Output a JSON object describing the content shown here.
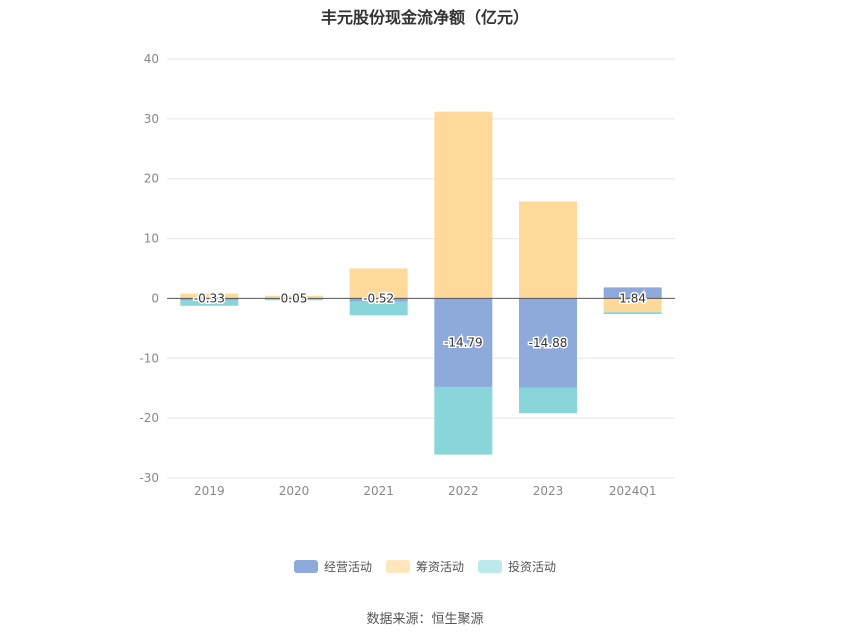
{
  "chart_data": {
    "type": "bar",
    "stacked": true,
    "title": "丰元股份现金流净额（亿元）",
    "categories": [
      "2019",
      "2020",
      "2021",
      "2022",
      "2023",
      "2024Q1"
    ],
    "series": [
      {
        "name": "经营活动",
        "color": "#8eaadb",
        "values": [
          -0.33,
          0.05,
          -0.52,
          -14.79,
          -14.88,
          1.84
        ],
        "labels": [
          "-0.33",
          "0.05",
          "-0.52",
          "-14.79",
          "-14.88",
          "1.84"
        ]
      },
      {
        "name": "筹资活动",
        "color": "#ffd99a",
        "values": [
          0.8,
          0.4,
          5.0,
          31.2,
          16.2,
          -2.3
        ]
      },
      {
        "name": "投资活动",
        "color": "#88d6d9",
        "values": [
          -0.9,
          -0.3,
          -2.3,
          -11.3,
          -4.3,
          -0.3
        ]
      }
    ],
    "ylim": [
      -30,
      40
    ],
    "yticks": [
      40,
      30,
      20,
      10,
      0,
      -10,
      -20,
      -30
    ],
    "grid": true,
    "legend_position": "bottom"
  },
  "legend_colors": {
    "经营活动": "#8eaadb",
    "筹资活动": "#ffe6bd",
    "投资活动": "#bce9eb"
  },
  "source": "数据来源：恒生聚源"
}
